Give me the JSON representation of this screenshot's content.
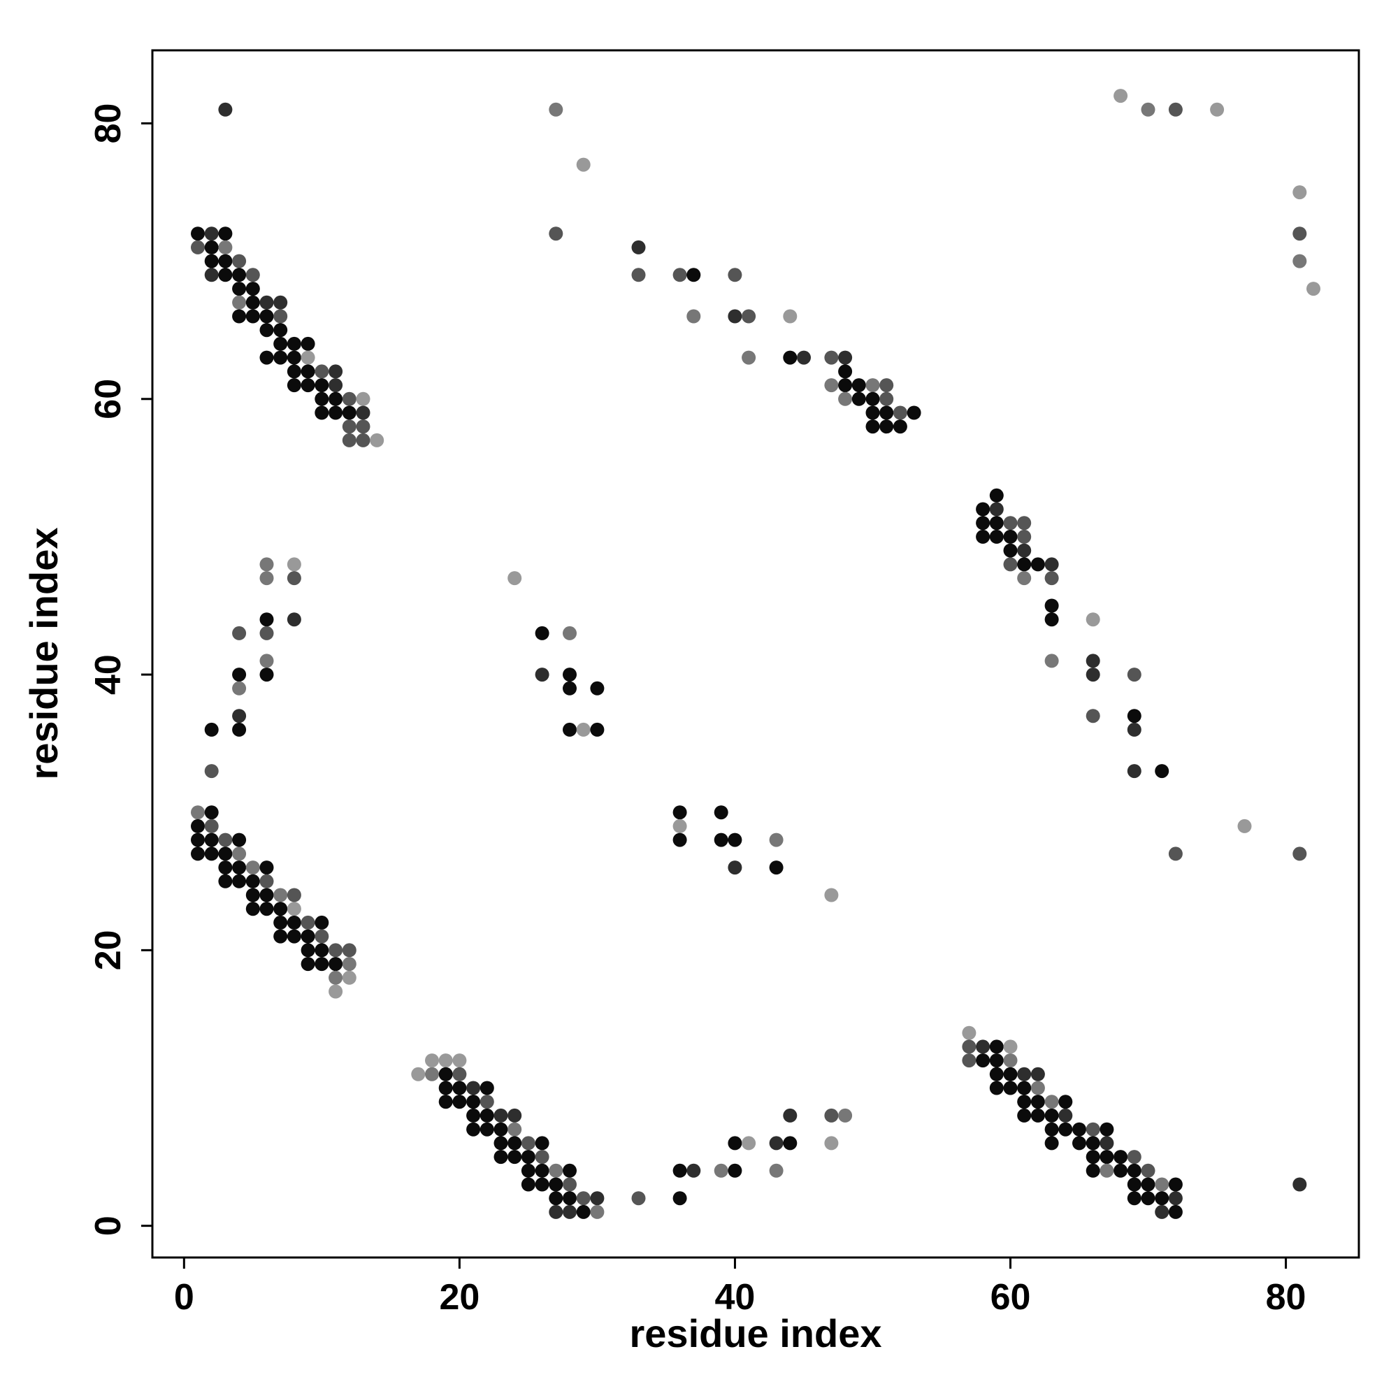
{
  "chart_data": {
    "type": "scatter",
    "title": "",
    "xlabel": "residue index",
    "ylabel": "residue index",
    "xlim": [
      -2.3,
      85.3
    ],
    "ylim": [
      -2.3,
      85.3
    ],
    "xticks": [
      0,
      20,
      40,
      60,
      80
    ],
    "yticks": [
      0,
      20,
      40,
      60,
      80
    ],
    "grid": false,
    "legend": "none",
    "point_shades": {
      "1": "#0b0b0b",
      "2": "#2e2e2e",
      "3": "#555555",
      "4": "#777777",
      "5": "#999999"
    },
    "points": [
      [
        3,
        81,
        2
      ],
      [
        27,
        81,
        4
      ],
      [
        29,
        77,
        5
      ],
      [
        27,
        72,
        3
      ],
      [
        68,
        82,
        5
      ],
      [
        70,
        81,
        4
      ],
      [
        72,
        81,
        3
      ],
      [
        75,
        81,
        5
      ],
      [
        81,
        75,
        5
      ],
      [
        81,
        72,
        3
      ],
      [
        81,
        70,
        4
      ],
      [
        82,
        68,
        5
      ],
      [
        1,
        72,
        1
      ],
      [
        2,
        72,
        2
      ],
      [
        3,
        72,
        1
      ],
      [
        1,
        71,
        3
      ],
      [
        2,
        71,
        1
      ],
      [
        3,
        71,
        4
      ],
      [
        2,
        70,
        1
      ],
      [
        3,
        70,
        1
      ],
      [
        4,
        70,
        3
      ],
      [
        2,
        69,
        2
      ],
      [
        3,
        69,
        1
      ],
      [
        4,
        69,
        1
      ],
      [
        5,
        69,
        3
      ],
      [
        4,
        68,
        1
      ],
      [
        5,
        68,
        1
      ],
      [
        4,
        67,
        4
      ],
      [
        5,
        67,
        1
      ],
      [
        6,
        67,
        2
      ],
      [
        7,
        67,
        2
      ],
      [
        4,
        66,
        1
      ],
      [
        5,
        66,
        1
      ],
      [
        6,
        66,
        1
      ],
      [
        7,
        66,
        3
      ],
      [
        6,
        65,
        1
      ],
      [
        7,
        65,
        1
      ],
      [
        7,
        64,
        1
      ],
      [
        8,
        64,
        1
      ],
      [
        9,
        64,
        1
      ],
      [
        6,
        63,
        1
      ],
      [
        7,
        63,
        1
      ],
      [
        8,
        63,
        1
      ],
      [
        9,
        63,
        5
      ],
      [
        8,
        62,
        1
      ],
      [
        9,
        62,
        1
      ],
      [
        10,
        62,
        3
      ],
      [
        11,
        62,
        2
      ],
      [
        8,
        61,
        1
      ],
      [
        9,
        61,
        1
      ],
      [
        10,
        61,
        1
      ],
      [
        11,
        61,
        2
      ],
      [
        10,
        60,
        1
      ],
      [
        11,
        60,
        1
      ],
      [
        12,
        60,
        3
      ],
      [
        13,
        60,
        5
      ],
      [
        10,
        59,
        1
      ],
      [
        11,
        59,
        1
      ],
      [
        12,
        59,
        1
      ],
      [
        13,
        59,
        2
      ],
      [
        12,
        58,
        3
      ],
      [
        13,
        58,
        3
      ],
      [
        12,
        57,
        3
      ],
      [
        13,
        57,
        3
      ],
      [
        14,
        57,
        5
      ],
      [
        33,
        71,
        2
      ],
      [
        33,
        69,
        3
      ],
      [
        36,
        69,
        3
      ],
      [
        37,
        69,
        1
      ],
      [
        40,
        69,
        3
      ],
      [
        37,
        66,
        4
      ],
      [
        40,
        66,
        2
      ],
      [
        41,
        66,
        3
      ],
      [
        44,
        66,
        5
      ],
      [
        41,
        63,
        4
      ],
      [
        44,
        63,
        1
      ],
      [
        45,
        63,
        2
      ],
      [
        47,
        63,
        3
      ],
      [
        48,
        63,
        2
      ],
      [
        48,
        62,
        1
      ],
      [
        47,
        61,
        4
      ],
      [
        48,
        61,
        1
      ],
      [
        49,
        61,
        1
      ],
      [
        50,
        61,
        4
      ],
      [
        51,
        61,
        3
      ],
      [
        48,
        60,
        4
      ],
      [
        49,
        60,
        1
      ],
      [
        50,
        60,
        1
      ],
      [
        51,
        60,
        3
      ],
      [
        50,
        59,
        1
      ],
      [
        51,
        59,
        1
      ],
      [
        52,
        59,
        3
      ],
      [
        53,
        59,
        1
      ],
      [
        50,
        58,
        1
      ],
      [
        51,
        58,
        1
      ],
      [
        52,
        58,
        1
      ],
      [
        59,
        53,
        1
      ],
      [
        58,
        52,
        1
      ],
      [
        59,
        52,
        2
      ],
      [
        58,
        51,
        1
      ],
      [
        59,
        51,
        1
      ],
      [
        60,
        51,
        3
      ],
      [
        61,
        51,
        3
      ],
      [
        58,
        50,
        1
      ],
      [
        59,
        50,
        1
      ],
      [
        60,
        50,
        1
      ],
      [
        61,
        50,
        3
      ],
      [
        60,
        49,
        1
      ],
      [
        61,
        49,
        2
      ],
      [
        60,
        48,
        3
      ],
      [
        61,
        48,
        1
      ],
      [
        62,
        48,
        1
      ],
      [
        63,
        48,
        2
      ],
      [
        61,
        47,
        4
      ],
      [
        63,
        47,
        3
      ],
      [
        63,
        45,
        1
      ],
      [
        63,
        44,
        1
      ],
      [
        66,
        44,
        5
      ],
      [
        63,
        41,
        4
      ],
      [
        66,
        41,
        2
      ],
      [
        66,
        40,
        2
      ],
      [
        69,
        40,
        3
      ],
      [
        69,
        37,
        1
      ],
      [
        66,
        37,
        3
      ],
      [
        69,
        36,
        2
      ],
      [
        69,
        33,
        2
      ],
      [
        71,
        33,
        1
      ],
      [
        77,
        29,
        5
      ],
      [
        72,
        27,
        3
      ],
      [
        81,
        27,
        3
      ],
      [
        6,
        48,
        4
      ],
      [
        8,
        48,
        5
      ],
      [
        6,
        47,
        4
      ],
      [
        8,
        47,
        3
      ],
      [
        6,
        44,
        1
      ],
      [
        8,
        44,
        2
      ],
      [
        4,
        43,
        3
      ],
      [
        6,
        43,
        3
      ],
      [
        6,
        41,
        4
      ],
      [
        4,
        40,
        1
      ],
      [
        6,
        40,
        1
      ],
      [
        4,
        39,
        4
      ],
      [
        4,
        37,
        2
      ],
      [
        2,
        36,
        1
      ],
      [
        4,
        36,
        1
      ],
      [
        2,
        33,
        3
      ],
      [
        24,
        47,
        5
      ],
      [
        26,
        43,
        1
      ],
      [
        28,
        43,
        4
      ],
      [
        26,
        40,
        2
      ],
      [
        28,
        40,
        1
      ],
      [
        28,
        39,
        1
      ],
      [
        30,
        39,
        1
      ],
      [
        28,
        36,
        1
      ],
      [
        29,
        36,
        5
      ],
      [
        30,
        36,
        1
      ],
      [
        36,
        30,
        1
      ],
      [
        39,
        30,
        1
      ],
      [
        36,
        29,
        5
      ],
      [
        36,
        28,
        1
      ],
      [
        39,
        28,
        1
      ],
      [
        40,
        28,
        1
      ],
      [
        43,
        28,
        4
      ],
      [
        40,
        26,
        2
      ],
      [
        43,
        26,
        1
      ],
      [
        47,
        24,
        5
      ],
      [
        1,
        30,
        4
      ],
      [
        2,
        30,
        1
      ],
      [
        1,
        29,
        1
      ],
      [
        2,
        29,
        3
      ],
      [
        1,
        28,
        1
      ],
      [
        2,
        28,
        1
      ],
      [
        3,
        28,
        3
      ],
      [
        4,
        28,
        1
      ],
      [
        1,
        27,
        1
      ],
      [
        2,
        27,
        1
      ],
      [
        3,
        27,
        1
      ],
      [
        4,
        27,
        4
      ],
      [
        3,
        26,
        1
      ],
      [
        4,
        26,
        1
      ],
      [
        5,
        26,
        4
      ],
      [
        6,
        26,
        1
      ],
      [
        3,
        25,
        1
      ],
      [
        4,
        25,
        1
      ],
      [
        5,
        25,
        1
      ],
      [
        6,
        25,
        3
      ],
      [
        5,
        24,
        1
      ],
      [
        6,
        24,
        1
      ],
      [
        7,
        24,
        4
      ],
      [
        8,
        24,
        3
      ],
      [
        5,
        23,
        1
      ],
      [
        6,
        23,
        1
      ],
      [
        7,
        23,
        1
      ],
      [
        8,
        23,
        5
      ],
      [
        7,
        22,
        1
      ],
      [
        8,
        22,
        1
      ],
      [
        9,
        22,
        3
      ],
      [
        10,
        22,
        1
      ],
      [
        7,
        21,
        1
      ],
      [
        8,
        21,
        1
      ],
      [
        9,
        21,
        1
      ],
      [
        10,
        21,
        3
      ],
      [
        9,
        20,
        1
      ],
      [
        10,
        20,
        1
      ],
      [
        11,
        20,
        3
      ],
      [
        12,
        20,
        3
      ],
      [
        9,
        19,
        1
      ],
      [
        10,
        19,
        1
      ],
      [
        11,
        19,
        1
      ],
      [
        12,
        19,
        4
      ],
      [
        11,
        18,
        4
      ],
      [
        12,
        18,
        5
      ],
      [
        11,
        17,
        5
      ],
      [
        17,
        11,
        5
      ],
      [
        18,
        11,
        4
      ],
      [
        18,
        12,
        5
      ],
      [
        19,
        12,
        5
      ],
      [
        20,
        12,
        5
      ],
      [
        19,
        11,
        1
      ],
      [
        20,
        11,
        3
      ],
      [
        19,
        10,
        1
      ],
      [
        20,
        10,
        1
      ],
      [
        21,
        10,
        2
      ],
      [
        22,
        10,
        1
      ],
      [
        19,
        9,
        1
      ],
      [
        20,
        9,
        1
      ],
      [
        21,
        9,
        1
      ],
      [
        22,
        9,
        3
      ],
      [
        21,
        8,
        1
      ],
      [
        22,
        8,
        1
      ],
      [
        23,
        8,
        2
      ],
      [
        24,
        8,
        2
      ],
      [
        21,
        7,
        1
      ],
      [
        22,
        7,
        1
      ],
      [
        23,
        7,
        1
      ],
      [
        24,
        7,
        4
      ],
      [
        23,
        6,
        1
      ],
      [
        24,
        6,
        1
      ],
      [
        25,
        6,
        3
      ],
      [
        26,
        6,
        1
      ],
      [
        23,
        5,
        1
      ],
      [
        24,
        5,
        1
      ],
      [
        25,
        5,
        1
      ],
      [
        26,
        5,
        3
      ],
      [
        25,
        4,
        1
      ],
      [
        26,
        4,
        1
      ],
      [
        27,
        4,
        4
      ],
      [
        28,
        4,
        1
      ],
      [
        25,
        3,
        1
      ],
      [
        26,
        3,
        1
      ],
      [
        27,
        3,
        1
      ],
      [
        28,
        3,
        3
      ],
      [
        27,
        2,
        1
      ],
      [
        28,
        2,
        1
      ],
      [
        29,
        2,
        3
      ],
      [
        30,
        2,
        2
      ],
      [
        27,
        1,
        2
      ],
      [
        28,
        1,
        2
      ],
      [
        29,
        1,
        1
      ],
      [
        30,
        1,
        4
      ],
      [
        33,
        2,
        3
      ],
      [
        36,
        2,
        1
      ],
      [
        36,
        4,
        1
      ],
      [
        37,
        4,
        2
      ],
      [
        39,
        4,
        4
      ],
      [
        40,
        4,
        1
      ],
      [
        43,
        4,
        4
      ],
      [
        40,
        6,
        1
      ],
      [
        41,
        6,
        5
      ],
      [
        43,
        6,
        2
      ],
      [
        44,
        6,
        1
      ],
      [
        47,
        6,
        5
      ],
      [
        44,
        8,
        2
      ],
      [
        47,
        8,
        3
      ],
      [
        48,
        8,
        4
      ],
      [
        57,
        14,
        5
      ],
      [
        57,
        13,
        3
      ],
      [
        58,
        13,
        2
      ],
      [
        59,
        13,
        1
      ],
      [
        60,
        13,
        5
      ],
      [
        57,
        12,
        3
      ],
      [
        58,
        12,
        1
      ],
      [
        59,
        12,
        1
      ],
      [
        60,
        12,
        4
      ],
      [
        59,
        11,
        1
      ],
      [
        60,
        11,
        1
      ],
      [
        61,
        11,
        2
      ],
      [
        62,
        11,
        2
      ],
      [
        59,
        10,
        1
      ],
      [
        60,
        10,
        1
      ],
      [
        61,
        10,
        1
      ],
      [
        62,
        10,
        4
      ],
      [
        61,
        9,
        1
      ],
      [
        62,
        9,
        1
      ],
      [
        63,
        9,
        4
      ],
      [
        64,
        9,
        1
      ],
      [
        61,
        8,
        1
      ],
      [
        62,
        8,
        1
      ],
      [
        63,
        8,
        1
      ],
      [
        64,
        8,
        2
      ],
      [
        63,
        7,
        1
      ],
      [
        64,
        7,
        1
      ],
      [
        65,
        7,
        1
      ],
      [
        66,
        7,
        3
      ],
      [
        67,
        7,
        1
      ],
      [
        63,
        6,
        1
      ],
      [
        65,
        6,
        1
      ],
      [
        66,
        6,
        1
      ],
      [
        67,
        6,
        2
      ],
      [
        66,
        5,
        1
      ],
      [
        67,
        5,
        1
      ],
      [
        68,
        5,
        1
      ],
      [
        69,
        5,
        3
      ],
      [
        66,
        4,
        1
      ],
      [
        67,
        4,
        4
      ],
      [
        68,
        4,
        1
      ],
      [
        69,
        4,
        1
      ],
      [
        70,
        4,
        3
      ],
      [
        69,
        3,
        1
      ],
      [
        70,
        3,
        1
      ],
      [
        71,
        3,
        4
      ],
      [
        72,
        3,
        1
      ],
      [
        69,
        2,
        1
      ],
      [
        70,
        2,
        1
      ],
      [
        71,
        2,
        1
      ],
      [
        72,
        2,
        2
      ],
      [
        71,
        1,
        2
      ],
      [
        72,
        1,
        1
      ],
      [
        81,
        3,
        2
      ]
    ]
  }
}
